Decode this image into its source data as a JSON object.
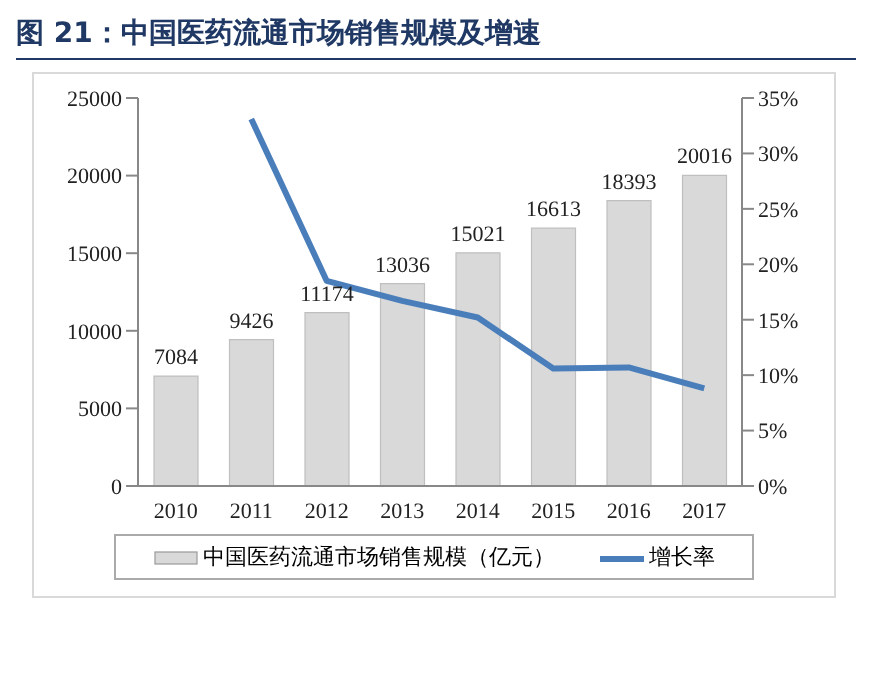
{
  "chart_data": {
    "type": "bar",
    "title": "图 21：中国医药流通市场销售规模及增速",
    "categories": [
      "2010",
      "2011",
      "2012",
      "2013",
      "2014",
      "2015",
      "2016",
      "2017"
    ],
    "series": [
      {
        "name": "中国医药流通市场销售规模（亿元）",
        "color": "#d9d9d9",
        "values": [
          7084,
          9426,
          11174,
          13036,
          15021,
          16613,
          18393,
          20016
        ],
        "value_labels": [
          "7084",
          "9426",
          "11174",
          "13036",
          "15021",
          "16613",
          "18393",
          "20016"
        ]
      },
      {
        "name": "增长率",
        "type": "line",
        "axis": "y2",
        "color": "#4a7ebb",
        "values": [
          null,
          33.1,
          18.5,
          16.7,
          15.2,
          10.6,
          10.7,
          8.8
        ]
      }
    ],
    "ylim": [
      0,
      25000
    ],
    "yticks": [
      0,
      5000,
      10000,
      15000,
      20000,
      25000
    ],
    "y2lim": [
      0,
      35
    ],
    "y2ticks": [
      {
        "value": 0,
        "label": "0%"
      },
      {
        "value": 5,
        "label": "5%"
      },
      {
        "value": 10,
        "label": "10%"
      },
      {
        "value": 15,
        "label": "15%"
      },
      {
        "value": 20,
        "label": "20%"
      },
      {
        "value": 25,
        "label": "25%"
      },
      {
        "value": 30,
        "label": "30%"
      },
      {
        "value": 35,
        "label": "35%"
      }
    ],
    "legend": "bottom",
    "grid": false,
    "marker": "none"
  }
}
